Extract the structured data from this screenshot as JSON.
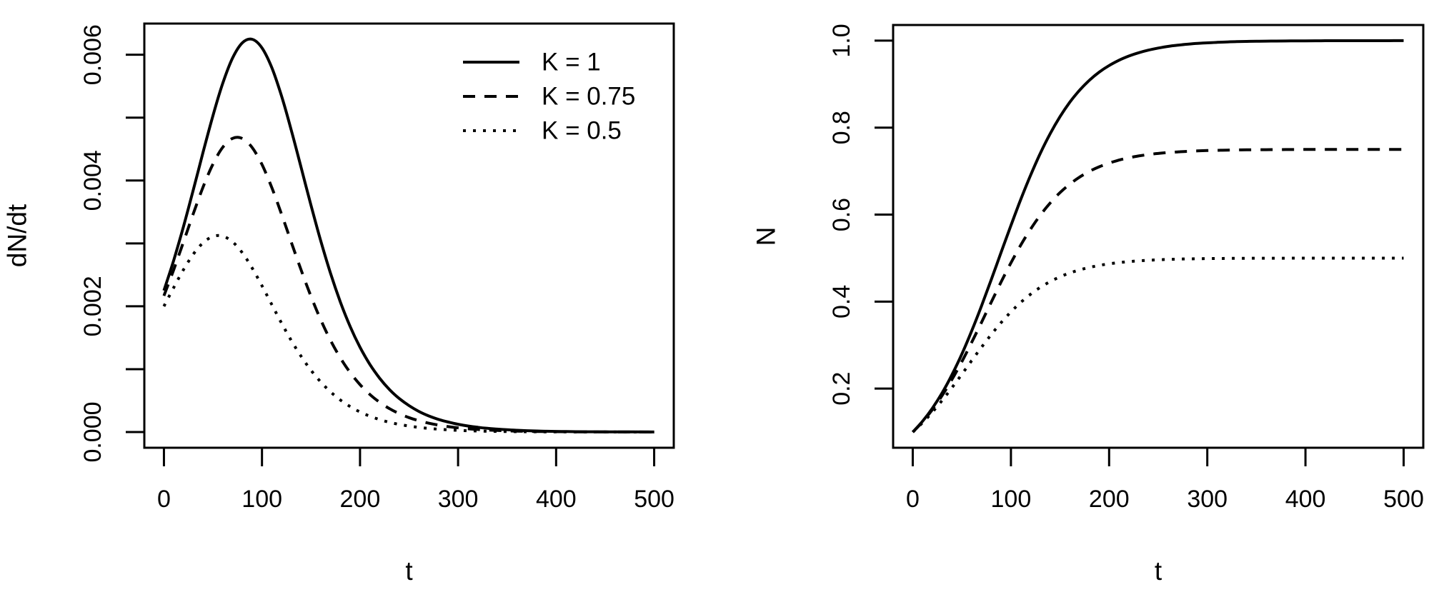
{
  "figure": {
    "background": "#ffffff",
    "stroke_color": "#000000"
  },
  "chart_data": [
    {
      "type": "line",
      "panel": "left",
      "title": "",
      "xlabel": "t",
      "ylabel": "dN/dt",
      "xlim": [
        0,
        500
      ],
      "ylim": [
        0,
        0.006246
      ],
      "grid": false,
      "x_ticks": {
        "values": [
          0,
          100,
          200,
          300,
          400,
          500
        ],
        "labels": [
          "0",
          "100",
          "200",
          "300",
          "400",
          "500"
        ]
      },
      "y_ticks": {
        "values": [
          0,
          0.001,
          0.002,
          0.003,
          0.004,
          0.005,
          0.006
        ],
        "labels": [
          "0.000",
          "",
          "0.002",
          "",
          "0.004",
          "",
          "0.006"
        ]
      },
      "x": [
        0,
        10,
        20,
        30,
        40,
        50,
        60,
        70,
        80,
        90,
        100,
        110,
        120,
        130,
        140,
        150,
        160,
        170,
        180,
        190,
        200,
        210,
        220,
        230,
        240,
        250,
        260,
        270,
        280,
        290,
        300,
        310,
        320,
        330,
        340,
        350,
        360,
        370,
        380,
        390,
        400,
        410,
        420,
        430,
        440,
        450,
        460,
        470,
        480,
        490,
        500
      ],
      "series": [
        {
          "name": "K = 1",
          "linetype": "solid",
          "values": [
            0.00225,
            0.002733,
            0.003272,
            0.003854,
            0.004454,
            0.005033,
            0.005548,
            0.005948,
            0.00619,
            0.006246,
            0.006109,
            0.005796,
            0.005342,
            0.004794,
            0.004201,
            0.003605,
            0.003037,
            0.002521,
            0.002066,
            0.001675,
            0.001348,
            0.001077,
            0.000856,
            0.000676,
            0.000533,
            0.00042,
            0.000328,
            0.000257,
            0.000201,
            0.000159,
            0.000124,
            9.7e-05,
            7.6e-05,
            5.9e-05,
            4.6e-05,
            3.6e-05,
            2.8e-05,
            2.2e-05,
            1.7e-05,
            1.3e-05,
            1e-05,
            8e-06,
            6e-06,
            5e-06,
            4e-06,
            3e-06,
            2e-06,
            2e-06,
            2e-06,
            1e-06,
            1e-06
          ]
        },
        {
          "name": "K = 0.75",
          "linetype": "dashed",
          "values": [
            0.002167,
            0.002583,
            0.003026,
            0.003475,
            0.003899,
            0.004262,
            0.004529,
            0.00467,
            0.004668,
            0.004524,
            0.004254,
            0.003888,
            0.003463,
            0.003014,
            0.002572,
            0.002157,
            0.001783,
            0.001456,
            0.001178,
            0.000945,
            0.000754,
            0.000598,
            0.000473,
            0.000372,
            0.000293,
            0.000229,
            0.00018,
            0.000141,
            0.00011,
            8.6e-05,
            6.7e-05,
            5.2e-05,
            4.1e-05,
            3.2e-05,
            2.5e-05,
            1.9e-05,
            1.5e-05,
            1.2e-05,
            9e-06,
            7e-06,
            6e-06,
            4e-06,
            3e-06,
            3e-06,
            2e-06,
            2e-06,
            1e-06,
            1e-06,
            1e-06,
            1e-06,
            0
          ]
        },
        {
          "name": "K = 0.5",
          "linetype": "dotted",
          "values": [
            0.002,
            0.002299,
            0.002584,
            0.002829,
            0.003011,
            0.003111,
            0.003115,
            0.003024,
            0.002849,
            0.002608,
            0.002326,
            0.002027,
            0.001731,
            0.001453,
            0.001202,
            0.000982,
            0.000795,
            0.000638,
            0.000509,
            0.000404,
            0.000319,
            0.000252,
            0.000198,
            0.000155,
            0.000122,
            9.5e-05,
            7.4e-05,
            5.8e-05,
            4.5e-05,
            3.5e-05,
            2.7e-05,
            2.1e-05,
            1.7e-05,
            1.3e-05,
            1e-05,
            8e-06,
            6e-06,
            5e-06,
            4e-06,
            3e-06,
            2e-06,
            2e-06,
            1e-06,
            1e-06,
            1e-06,
            1e-06,
            1e-06,
            0,
            0,
            0,
            0
          ]
        }
      ],
      "legend": {
        "position": "topright",
        "entries": [
          {
            "label": "K = 1",
            "linetype": "solid"
          },
          {
            "label": "K = 0.75",
            "linetype": "dashed"
          },
          {
            "label": "K = 0.5",
            "linetype": "dotted"
          }
        ]
      }
    },
    {
      "type": "line",
      "panel": "right",
      "title": "",
      "xlabel": "t",
      "ylabel": "N",
      "xlim": [
        0,
        500
      ],
      "ylim": [
        0.1,
        1.0
      ],
      "grid": false,
      "x_ticks": {
        "values": [
          0,
          100,
          200,
          300,
          400,
          500
        ],
        "labels": [
          "0",
          "100",
          "200",
          "300",
          "400",
          "500"
        ]
      },
      "y_ticks": {
        "values": [
          0.2,
          0.4,
          0.6,
          0.8,
          1.0
        ],
        "labels": [
          "0.2",
          "0.4",
          "0.6",
          "0.8",
          "1.0"
        ]
      },
      "x": [
        0,
        10,
        20,
        30,
        40,
        50,
        60,
        70,
        80,
        90,
        100,
        110,
        120,
        130,
        140,
        150,
        160,
        170,
        180,
        190,
        200,
        210,
        220,
        230,
        240,
        250,
        260,
        270,
        280,
        290,
        300,
        310,
        320,
        330,
        340,
        350,
        360,
        370,
        380,
        390,
        400,
        410,
        420,
        430,
        440,
        450,
        460,
        470,
        480,
        490,
        500
      ],
      "series": [
        {
          "name": "K = 1",
          "linetype": "solid",
          "values": [
            0.1,
            0.1249,
            0.1549,
            0.1904,
            0.232,
            0.2794,
            0.3324,
            0.39,
            0.4508,
            0.5132,
            0.5751,
            0.6348,
            0.6906,
            0.7413,
            0.7863,
            0.8253,
            0.8585,
            0.8862,
            0.9091,
            0.9278,
            0.9428,
            0.9549,
            0.9645,
            0.9722,
            0.9782,
            0.9829,
            0.9867,
            0.9896,
            0.9919,
            0.9936,
            0.995,
            0.9961,
            0.997,
            0.9977,
            0.9982,
            0.9986,
            0.9989,
            0.9991,
            0.9993,
            0.9995,
            0.9996,
            0.9997,
            0.9998,
            0.9998,
            0.9998,
            0.9999,
            0.9999,
            0.9999,
            0.9999,
            1,
            1
          ]
        },
        {
          "name": "K = 0.75",
          "linetype": "dashed",
          "values": [
            0.1,
            0.1237,
            0.1517,
            0.1843,
            0.2212,
            0.262,
            0.3061,
            0.3522,
            0.399,
            0.4451,
            0.4891,
            0.5298,
            0.5666,
            0.599,
            0.6269,
            0.6506,
            0.6702,
            0.6864,
            0.6995,
            0.7101,
            0.7185,
            0.7253,
            0.7306,
            0.7348,
            0.7381,
            0.7407,
            0.7427,
            0.7443,
            0.7456,
            0.7466,
            0.7473,
            0.7479,
            0.7484,
            0.7487,
            0.749,
            0.7492,
            0.7494,
            0.7495,
            0.7496,
            0.7497,
            0.7498,
            0.7498,
            0.7499,
            0.7499,
            0.7499,
            0.7499,
            0.75,
            0.75,
            0.75,
            0.75,
            0.75
          ]
        },
        {
          "name": "K = 0.5",
          "linetype": "dotted",
          "values": [
            0.1,
            0.1215,
            0.1459,
            0.173,
            0.2023,
            0.233,
            0.2642,
            0.295,
            0.3244,
            0.3517,
            0.3764,
            0.3982,
            0.417,
            0.4329,
            0.4461,
            0.457,
            0.4659,
            0.473,
            0.4787,
            0.4833,
            0.4869,
            0.4897,
            0.492,
            0.4937,
            0.4951,
            0.4962,
            0.497,
            0.4977,
            0.4982,
            0.4986,
            0.4989,
            0.4991,
            0.4993,
            0.4995,
            0.4996,
            0.4997,
            0.4998,
            0.4998,
            0.4998,
            0.4999,
            0.4999,
            0.4999,
            0.5,
            0.5,
            0.5,
            0.5,
            0.5,
            0.5,
            0.5,
            0.5,
            0.5
          ]
        }
      ],
      "legend": null
    }
  ]
}
